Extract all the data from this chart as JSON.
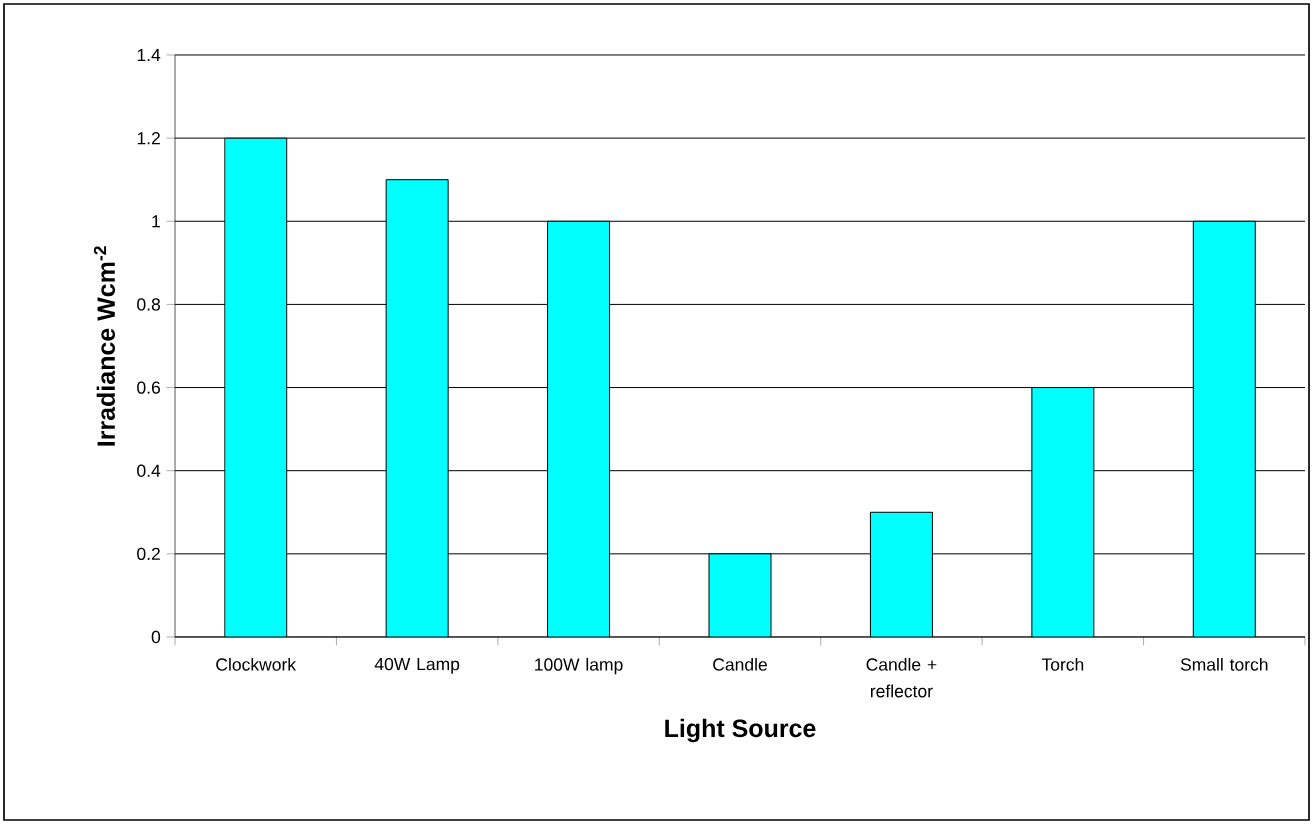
{
  "chart_data": {
    "type": "bar",
    "xlabel": "Light Source",
    "ylabel": "Irradiance Wcm$^{-2}$",
    "categories": [
      "Clockwork",
      "40W Lamp",
      "100W lamp",
      "Candle",
      "Candle + reflector",
      "Torch",
      "Small torch"
    ],
    "values": [
      1.2,
      1.1,
      1.0,
      0.2,
      0.3,
      0.6,
      1.0
    ],
    "color": "#00ffff",
    "ylim": [
      0,
      1.4
    ],
    "yticks": [
      0,
      0.2,
      0.4,
      0.6,
      0.8,
      1,
      1.2,
      1.4
    ],
    "grid": "y"
  }
}
